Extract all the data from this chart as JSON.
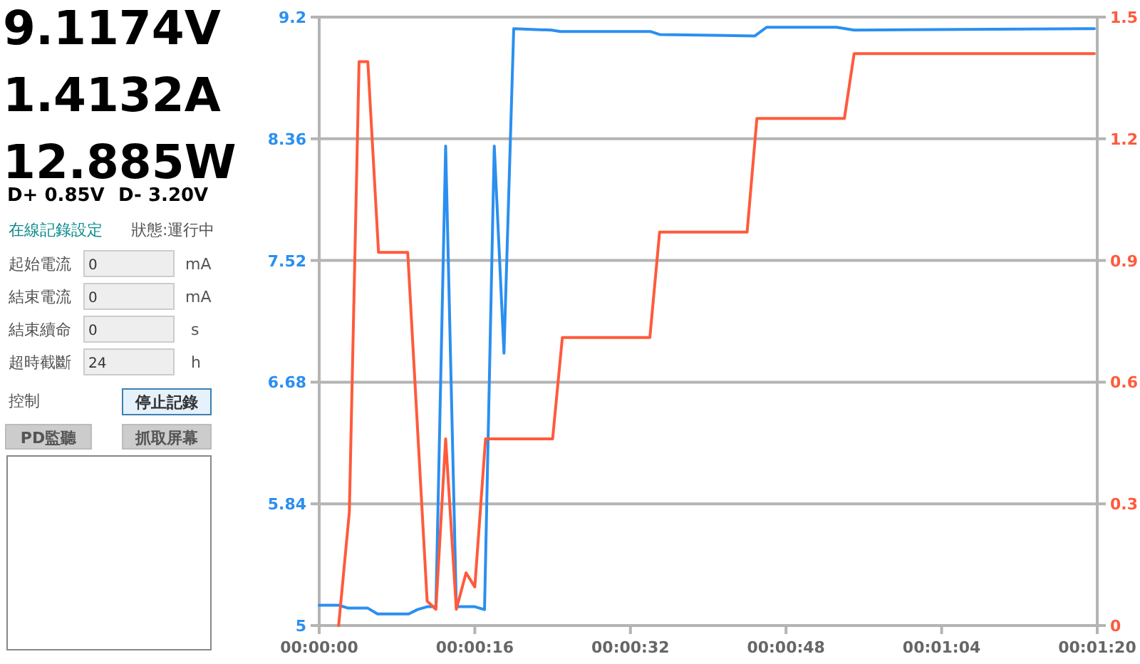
{
  "chart_data": [
    {
      "type": "other",
      "annotations": [
        "9.1174V",
        "1.4132A",
        "12.885W",
        "D+ 0.85V",
        "D- 3.20V",
        "在線記錄設定",
        "狀態:運行中",
        "起始電流",
        "0",
        "mA",
        "結束電流",
        "0",
        "mA",
        "結束續命",
        "0",
        "s",
        "超時截斷",
        "24",
        "h",
        "控制",
        "停止記錄",
        "PD監聽",
        "抓取屏幕"
      ]
    },
    {
      "type": "line",
      "xlim": [
        0,
        80
      ],
      "xticks": [
        {
          "value": 0,
          "label": "00:00:00"
        },
        {
          "value": 16,
          "label": "00:00:16"
        },
        {
          "value": 32,
          "label": "00:00:32"
        },
        {
          "value": 48,
          "label": "00:00:48"
        },
        {
          "value": 64,
          "label": "00:01:04"
        },
        {
          "value": 80,
          "label": "00:01:20"
        }
      ],
      "ylim": [
        5,
        9.2
      ],
      "yticks": [
        5,
        5.84,
        6.68,
        7.52,
        8.36,
        9.2
      ],
      "y2lim": [
        0,
        1.5
      ],
      "y2ticks": [
        0,
        0.3,
        0.6,
        0.9,
        1.2,
        1.5
      ],
      "grid": "y",
      "series": [
        {
          "color": "#2b8ff0",
          "x": [
            0,
            2,
            3,
            5,
            6,
            9.2,
            10.1,
            11.1,
            12,
            13,
            14.1,
            16,
            17,
            18,
            19,
            20,
            23.9,
            24.8,
            27.2,
            34.1,
            35,
            44.8,
            46,
            53.2,
            55,
            79.7
          ],
          "values": [
            5.14,
            5.14,
            5.12,
            5.12,
            5.08,
            5.08,
            5.11,
            5.13,
            5.13,
            8.31,
            5.13,
            5.13,
            5.11,
            8.31,
            6.88,
            9.12,
            9.11,
            9.1,
            9.1,
            9.1,
            9.08,
            9.07,
            9.13,
            9.13,
            9.11,
            9.12
          ]
        },
        {
          "color": "#ff5a3c",
          "axis": "y2",
          "x": [
            2,
            3.1,
            4.1,
            5,
            6.1,
            9.1,
            11.1,
            12,
            13,
            14.1,
            15.1,
            16,
            17.1,
            24,
            25,
            34,
            35,
            44,
            45,
            54,
            55,
            79.7
          ],
          "values": [
            0,
            0.28,
            1.39,
            1.39,
            0.92,
            0.92,
            0.06,
            0.04,
            0.46,
            0.04,
            0.13,
            0.095,
            0.46,
            0.46,
            0.71,
            0.71,
            0.97,
            0.97,
            1.25,
            1.25,
            1.41,
            1.41
          ]
        }
      ]
    }
  ]
}
